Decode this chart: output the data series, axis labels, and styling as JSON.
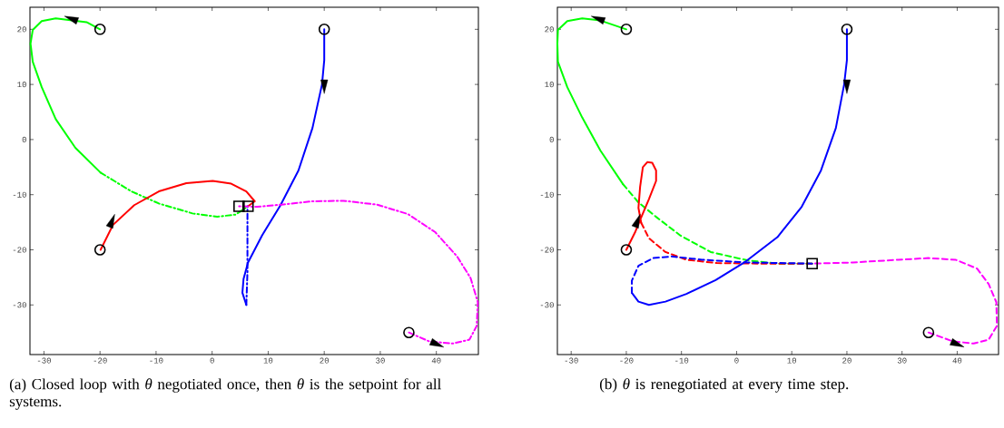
{
  "chart_data": [
    {
      "type": "line",
      "xlim": [
        -32.5,
        47.5
      ],
      "ylim": [
        -39,
        24
      ],
      "xticks": [
        -30,
        -20,
        -10,
        0,
        10,
        20,
        30,
        40
      ],
      "yticks": [
        -30,
        -20,
        -10,
        0,
        10,
        20
      ],
      "grid": false,
      "annotations": [
        "(a) Closed loop with *θ* negotiated once, then *θ* is the setpoint for all systems."
      ],
      "series": [
        {
          "color": "#00ff00",
          "line_style": "solid",
          "x": [
            -20,
            -22.4,
            -27.9,
            -30.4,
            -32,
            -32.4,
            -32,
            -30.4,
            -27.9,
            -24.4,
            -19.9
          ],
          "values": [
            20,
            21.3,
            22,
            21.5,
            19.9,
            17.4,
            14.1,
            9.5,
            3.7,
            -1.5,
            -6
          ]
        },
        {
          "color": "#00ff00",
          "line_style": "dashdot",
          "x": [
            -19.9,
            -14.4,
            -9.5,
            -3.5,
            0.9,
            4.2,
            6.4
          ],
          "values": [
            -6,
            -9.4,
            -11.6,
            -13.4,
            -14,
            -13.6,
            -12.1
          ]
        },
        {
          "color": "#ff0000",
          "line_style": "solid",
          "x": [
            -19.9,
            -17.7,
            -13.9,
            -9.5,
            -4.6,
            0.1,
            3.4,
            6.1,
            7.6,
            6.4
          ],
          "values": [
            -20,
            -15.5,
            -11.9,
            -9.4,
            -7.9,
            -7.5,
            -8,
            -9.4,
            -11.2,
            -12.1
          ]
        },
        {
          "color": "#0000ff",
          "line_style": "solid",
          "x": [
            20,
            20,
            19.6,
            17.9,
            15.4,
            12.2,
            8.9,
            6.4,
            5.6,
            5.4,
            6.1
          ],
          "values": [
            20,
            14.4,
            10,
            2.1,
            -5.6,
            -11.9,
            -17.4,
            -22.3,
            -25.3,
            -27.8,
            -30
          ]
        },
        {
          "color": "#0000ff",
          "line_style": "dashdot",
          "x": [
            6.1,
            6.3,
            6.3
          ],
          "values": [
            -30,
            -24,
            -12.1
          ]
        },
        {
          "color": "#ff00ff",
          "line_style": "dashdot",
          "x": [
            35.1,
            38.7,
            42.9,
            45.9,
            47.2,
            47.4,
            46.1,
            43.7,
            39.8,
            34.9,
            29.4,
            23.4,
            17.9,
            12.4,
            8,
            4.8
          ],
          "values": [
            -35,
            -36.6,
            -37,
            -36.3,
            -33.8,
            -29.5,
            -25.1,
            -21.2,
            -16.8,
            -13.5,
            -11.8,
            -11.1,
            -11.2,
            -11.8,
            -12.2,
            -12.1
          ]
        },
        {
          "type": "scatter",
          "marker": "circle",
          "color": "#000000",
          "x": [
            -20,
            -20,
            20,
            35.1
          ],
          "values": [
            20,
            -20,
            20,
            -35
          ]
        },
        {
          "type": "scatter",
          "marker": "triangle",
          "color": "#000000",
          "x": [
            -24.8,
            -18,
            20,
            39.8
          ],
          "values": [
            21.8,
            -15.1,
            10,
            -37
          ]
        },
        {
          "type": "scatter",
          "marker": "square",
          "color": "#000000",
          "x": [
            4.8,
            6.4
          ],
          "values": [
            -12.1,
            -12.1
          ]
        }
      ]
    },
    {
      "type": "line",
      "xlim": [
        -32.5,
        47.5
      ],
      "ylim": [
        -39,
        24
      ],
      "xticks": [
        -30,
        -20,
        -10,
        0,
        10,
        20,
        30,
        40
      ],
      "yticks": [
        -30,
        -20,
        -10,
        0,
        10,
        20
      ],
      "grid": false,
      "annotations": [
        "(b) *θ* is renegotiated at every time step."
      ],
      "series": [
        {
          "color": "#00ff00",
          "line_style": "solid",
          "x": [
            -20,
            -24.7,
            -28,
            -30.7,
            -32.4,
            -32.5,
            -32.4,
            -30.7,
            -28,
            -24.7,
            -20.6
          ],
          "values": [
            20,
            21.6,
            22,
            21.5,
            19.9,
            17.4,
            14.1,
            9.5,
            4,
            -2,
            -8.1
          ]
        },
        {
          "color": "#00ff00",
          "line_style": "dashed",
          "x": [
            -20.6,
            -17.8,
            -14.5,
            -10.2,
            -4.7,
            1.9,
            7.4,
            13.7
          ],
          "values": [
            -8.1,
            -11.4,
            -14.1,
            -17.4,
            -20.4,
            -21.9,
            -22.5,
            -22.5
          ]
        },
        {
          "color": "#ff0000",
          "line_style": "solid",
          "x": [
            -20,
            -18.4,
            -17.5,
            -15.9,
            -14.6,
            -14.6,
            -15.3,
            -16.2,
            -17,
            -17.5,
            -17.8,
            -17.3
          ],
          "values": [
            -20,
            -16.8,
            -14.6,
            -10.8,
            -7.5,
            -5.6,
            -4.2,
            -4.1,
            -5,
            -8.6,
            -12.4,
            -15.1
          ]
        },
        {
          "color": "#ff0000",
          "line_style": "dashed",
          "x": [
            -17.3,
            -15.9,
            -12.9,
            -9.1,
            -3.6,
            4.6,
            13.7
          ],
          "values": [
            -15.1,
            -17.9,
            -20.4,
            -21.8,
            -22.4,
            -22.5,
            -22.5
          ]
        },
        {
          "color": "#0000ff",
          "line_style": "solid",
          "x": [
            20,
            20,
            19.5,
            18,
            15.3,
            11.8,
            7.4,
            1.4,
            -3.8,
            -9.1,
            -12.9,
            -15.9,
            -17.8,
            -19
          ],
          "values": [
            20,
            14.4,
            10,
            2.1,
            -5.6,
            -12.2,
            -17.7,
            -22.3,
            -25.5,
            -28,
            -29.4,
            -30,
            -29.4,
            -27.8
          ]
        },
        {
          "color": "#0000ff",
          "line_style": "dashed",
          "x": [
            -19,
            -19,
            -17.8,
            -15.1,
            -11.8,
            -6.3,
            1.9,
            13.7
          ],
          "values": [
            -27.8,
            -25.6,
            -22.9,
            -21.5,
            -21.2,
            -21.8,
            -22.3,
            -22.5
          ]
        },
        {
          "color": "#ff00ff",
          "line_style": "dashed",
          "x": [
            34.8,
            39.2,
            43,
            45.7,
            47.2,
            47.1,
            45.7,
            43.6,
            39.7,
            34.8,
            29.3,
            21.1,
            13.7
          ],
          "values": [
            -35,
            -36.6,
            -37,
            -36.3,
            -33.8,
            -29.5,
            -26.2,
            -23.4,
            -21.8,
            -21.5,
            -21.8,
            -22.3,
            -22.5
          ]
        },
        {
          "type": "scatter",
          "marker": "circle",
          "color": "#000000",
          "x": [
            -20,
            -20,
            20,
            34.8
          ],
          "values": [
            20,
            -20,
            20,
            -35
          ]
        },
        {
          "type": "scatter",
          "marker": "triangle",
          "color": "#000000",
          "x": [
            -24.8,
            -18.1,
            20,
            39.7
          ],
          "values": [
            21.8,
            -15.1,
            10,
            -37
          ]
        },
        {
          "type": "scatter",
          "marker": "square",
          "color": "#000000",
          "x": [
            13.7
          ],
          "values": [
            -22.5
          ]
        }
      ]
    }
  ]
}
